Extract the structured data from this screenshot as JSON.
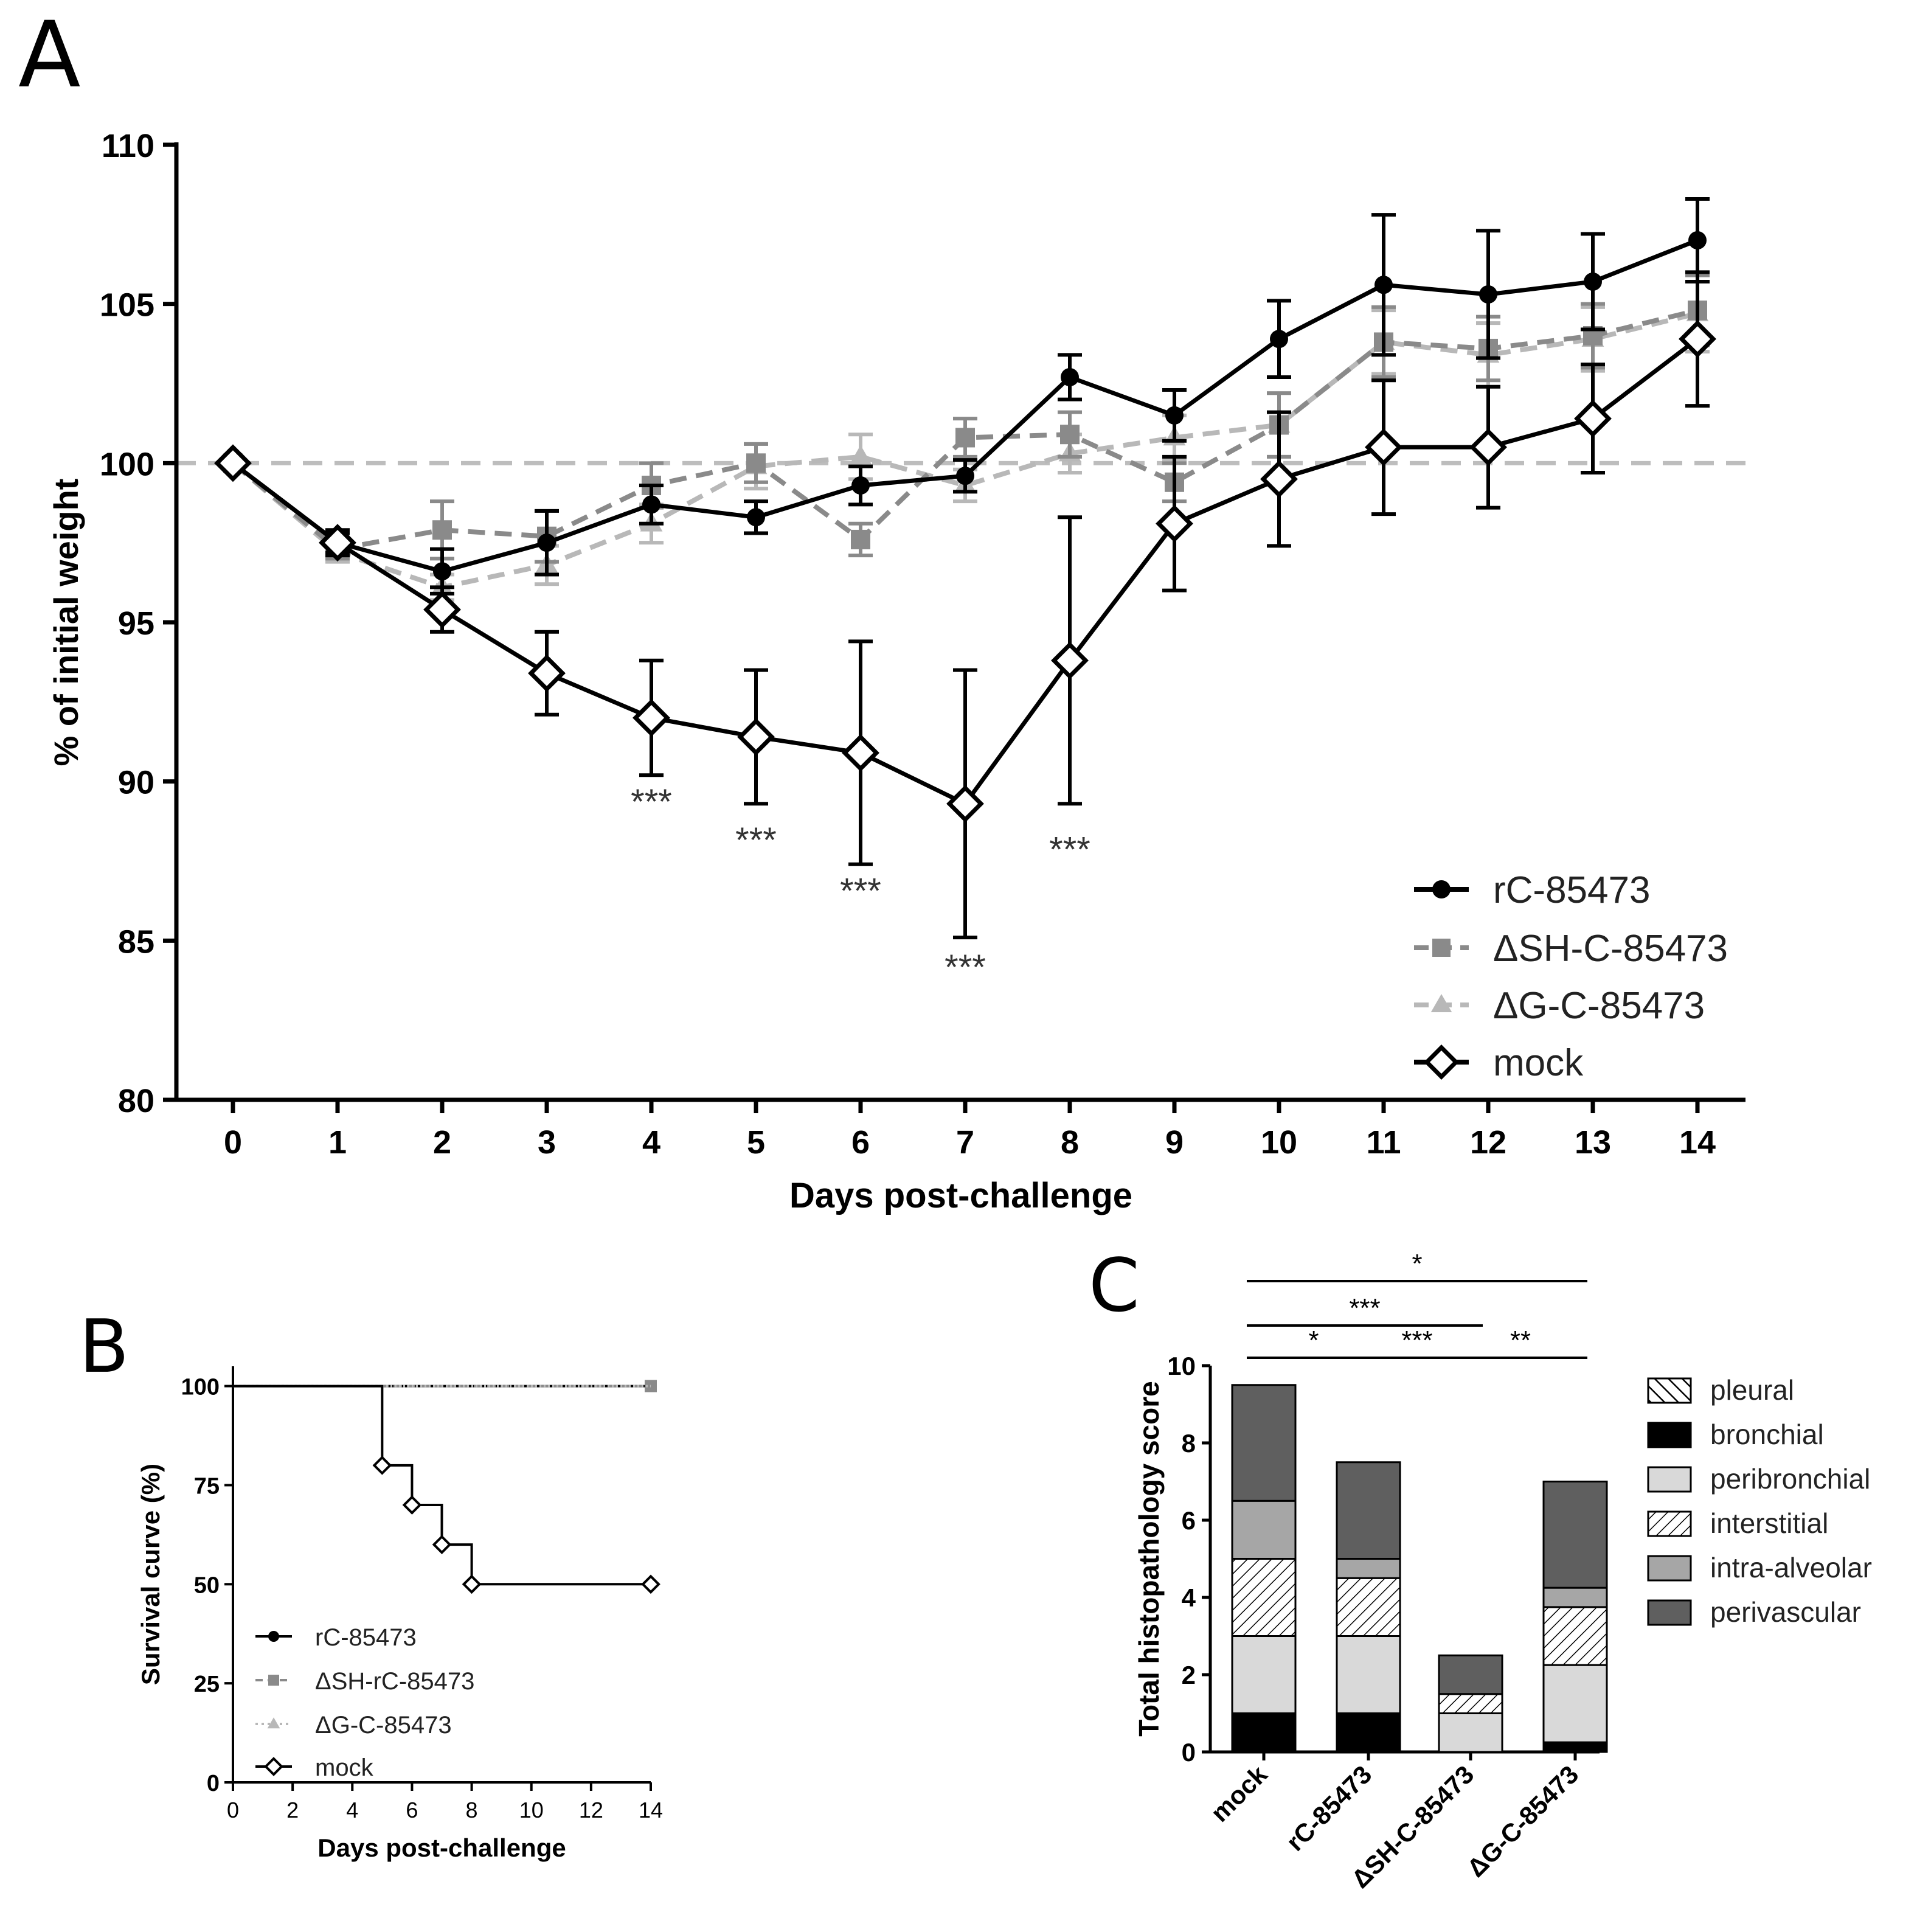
{
  "figure": {
    "panels": [
      "A",
      "B",
      "C"
    ]
  },
  "colors": {
    "black": "#000000",
    "dark_gray": "#8a8a8a",
    "light_gray": "#b8b8b8",
    "ref_line": "#bdbdbd",
    "c_perivascular": "#5f5f5f",
    "c_intra_alveolar": "#a6a6a6",
    "c_peribronchial": "#d9d9d9",
    "c_bronchial": "#000000"
  },
  "chart_data": [
    {
      "panel": "A",
      "type": "line",
      "xlabel": "Days post-challenge",
      "ylabel": "% of initial weight",
      "xlim": [
        0,
        14
      ],
      "ylim": [
        80,
        110
      ],
      "xticks": [
        "0",
        "1",
        "2",
        "3",
        "4",
        "5",
        "6",
        "7",
        "8",
        "9",
        "10",
        "11",
        "12",
        "13",
        "14"
      ],
      "yticks": [
        "80",
        "85",
        "90",
        "95",
        "100",
        "105",
        "110"
      ],
      "reference_line": 100,
      "x": [
        0,
        1,
        2,
        3,
        4,
        5,
        6,
        7,
        8,
        9,
        10,
        11,
        12,
        13,
        14
      ],
      "series": [
        {
          "name": "rC-85473",
          "marker": "circle",
          "style": "solid",
          "color": "#000000",
          "values": [
            100,
            97.5,
            96.6,
            97.5,
            98.7,
            98.3,
            99.3,
            99.6,
            102.7,
            101.5,
            103.9,
            105.6,
            105.3,
            105.7,
            107.0
          ],
          "errors": [
            0,
            0.3,
            0.7,
            1.0,
            0.6,
            0.5,
            0.6,
            0.5,
            0.7,
            0.8,
            1.2,
            2.2,
            2.0,
            1.5,
            1.3
          ]
        },
        {
          "name": "ΔSH-C-85473",
          "marker": "square",
          "style": "dashed",
          "color": "#8a8a8a",
          "values": [
            100,
            97.3,
            97.9,
            97.7,
            99.3,
            100.0,
            97.6,
            100.8,
            100.9,
            99.4,
            101.2,
            103.8,
            103.6,
            104.0,
            104.8
          ],
          "errors": [
            0,
            0.3,
            0.9,
            0.8,
            0.7,
            0.6,
            0.5,
            0.6,
            0.7,
            0.6,
            1.0,
            1.1,
            1.0,
            1.0,
            1.1
          ]
        },
        {
          "name": "ΔG-C-85473",
          "marker": "triangle",
          "style": "dashed",
          "color": "#b8b8b8",
          "values": [
            100,
            97.2,
            96.1,
            96.8,
            98.1,
            99.9,
            100.2,
            99.3,
            100.3,
            100.8,
            101.2,
            103.8,
            103.4,
            103.9,
            104.7
          ],
          "errors": [
            0,
            0.3,
            0.4,
            0.6,
            0.6,
            0.7,
            0.7,
            0.5,
            0.6,
            0.7,
            1.0,
            1.0,
            1.0,
            1.0,
            1.2
          ]
        },
        {
          "name": "mock",
          "marker": "diamond",
          "style": "solid",
          "color": "#000000",
          "values": [
            100,
            97.5,
            95.4,
            93.4,
            92.0,
            91.4,
            90.9,
            89.3,
            93.8,
            98.1,
            99.5,
            100.5,
            100.5,
            101.4,
            103.9
          ],
          "errors": [
            0,
            0.4,
            0.7,
            1.3,
            1.8,
            2.1,
            3.5,
            4.2,
            4.5,
            2.1,
            2.1,
            2.1,
            1.9,
            1.7,
            2.1
          ]
        }
      ],
      "annotations": [
        {
          "x": 4,
          "y": 89.4,
          "text": "***"
        },
        {
          "x": 5,
          "y": 88.2,
          "text": "***"
        },
        {
          "x": 6,
          "y": 86.6,
          "text": "***"
        },
        {
          "x": 7,
          "y": 84.2,
          "text": "***"
        },
        {
          "x": 8,
          "y": 87.9,
          "text": "***"
        }
      ],
      "legend": {
        "position": "bottom-right",
        "entries": [
          "rC-85473",
          "ΔSH-C-85473",
          "ΔG-C-85473",
          "mock"
        ]
      }
    },
    {
      "panel": "B",
      "type": "line",
      "subtype": "step",
      "xlabel": "Days post-challenge",
      "ylabel": "Survival curve (%)",
      "xlim": [
        0,
        14
      ],
      "ylim": [
        0,
        105
      ],
      "xticks": [
        "0",
        "2",
        "4",
        "6",
        "8",
        "10",
        "12",
        "14"
      ],
      "yticks": [
        "0",
        "25",
        "50",
        "75",
        "100"
      ],
      "series": [
        {
          "name": "rC-85473",
          "marker": "circle",
          "style": "solid",
          "color": "#000000",
          "steps": [
            [
              0,
              100
            ],
            [
              14,
              100
            ]
          ],
          "marker_points": []
        },
        {
          "name": "ΔSH-rC-85473",
          "marker": "square",
          "style": "dashed",
          "color": "#8a8a8a",
          "steps": [
            [
              0,
              100
            ],
            [
              14,
              100
            ]
          ],
          "marker_points": [
            [
              14,
              100
            ]
          ]
        },
        {
          "name": "ΔG-C-85473",
          "marker": "triangle",
          "style": "dotted",
          "color": "#b8b8b8",
          "steps": [
            [
              0,
              100
            ],
            [
              14,
              100
            ]
          ],
          "marker_points": []
        },
        {
          "name": "mock",
          "marker": "diamond",
          "style": "solid",
          "color": "#000000",
          "steps": [
            [
              0,
              100
            ],
            [
              5,
              100
            ],
            [
              5,
              80
            ],
            [
              6,
              80
            ],
            [
              6,
              70
            ],
            [
              7,
              70
            ],
            [
              7,
              60
            ],
            [
              8,
              60
            ],
            [
              8,
              50
            ],
            [
              14,
              50
            ]
          ],
          "marker_points": [
            [
              5,
              80
            ],
            [
              6,
              70
            ],
            [
              7,
              60
            ],
            [
              8,
              50
            ],
            [
              14,
              50
            ]
          ]
        }
      ],
      "legend": {
        "position": "bottom-left",
        "entries": [
          "rC-85473",
          "ΔSH-rC-85473",
          "ΔG-C-85473",
          "mock"
        ]
      }
    },
    {
      "panel": "C",
      "type": "bar",
      "subtype": "stacked",
      "ylabel": "Total histopathology score",
      "ylim": [
        0,
        10
      ],
      "yticks": [
        "0",
        "2",
        "4",
        "6",
        "8",
        "10"
      ],
      "categories": [
        "mock",
        "rC-85473",
        "ΔSH-C-85473",
        "ΔG-C-85473"
      ],
      "series": [
        {
          "name": "bronchial",
          "fill": "solid-black",
          "values": [
            1.0,
            1.0,
            0.0,
            0.25
          ]
        },
        {
          "name": "peribronchial",
          "fill": "light-gray",
          "values": [
            2.0,
            2.0,
            1.0,
            2.0
          ]
        },
        {
          "name": "interstitial",
          "fill": "hatched",
          "values": [
            2.0,
            1.5,
            0.5,
            1.5
          ]
        },
        {
          "name": "intra-alveolar",
          "fill": "mid-gray",
          "values": [
            1.5,
            0.5,
            0.0,
            0.5
          ]
        },
        {
          "name": "perivascular",
          "fill": "dark-gray",
          "values": [
            3.0,
            2.5,
            1.0,
            2.75
          ]
        },
        {
          "name": "pleural",
          "fill": "diagonal-hatch",
          "values": [
            0,
            0,
            0,
            0
          ]
        }
      ],
      "significance": [
        {
          "from": 0,
          "to": 1,
          "text": "*",
          "level": 0
        },
        {
          "from": 1,
          "to": 2,
          "text": "***",
          "level": 0
        },
        {
          "from": 2,
          "to": 3,
          "text": "**",
          "level": 0
        },
        {
          "from": 0,
          "to": 2,
          "text": "***",
          "level": 1
        },
        {
          "from": 0,
          "to": 3,
          "text": "*",
          "level": 2
        }
      ],
      "legend": {
        "position": "right",
        "entries": [
          "pleural",
          "bronchial",
          "peribronchial",
          "interstitial",
          "intra-alveolar",
          "perivascular"
        ]
      }
    }
  ]
}
